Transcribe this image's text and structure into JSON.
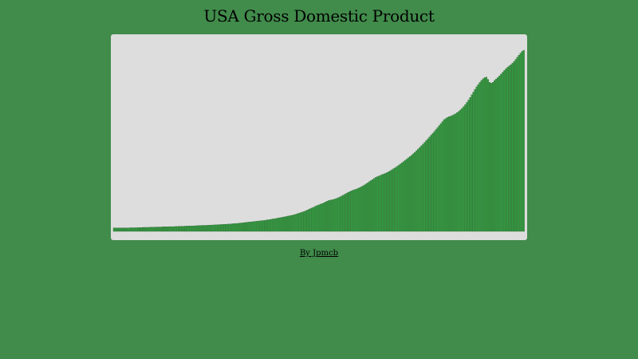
{
  "colors": {
    "page_background": "#418b4b",
    "panel_background": "#dddddd",
    "bar_fill": "#33a03f",
    "bar_stroke": "#1d5e26"
  },
  "chart_data": {
    "type": "bar",
    "title": "USA Gross Domestic Product",
    "xlabel": "",
    "ylabel": "",
    "grid": false,
    "legend": "none",
    "ylim": [
      0,
      100
    ],
    "series": [
      {
        "values": [
          1.9,
          1.9,
          1.9,
          1.9,
          1.9,
          1.9,
          1.9,
          1.9,
          1.9,
          1.9,
          2.0,
          2.0,
          2.0,
          2.0,
          2.0,
          2.1,
          2.1,
          2.1,
          2.2,
          2.2,
          2.2,
          2.2,
          2.3,
          2.3,
          2.3,
          2.3,
          2.4,
          2.4,
          2.4,
          2.4,
          2.5,
          2.5,
          2.5,
          2.5,
          2.6,
          2.6,
          2.6,
          2.6,
          2.7,
          2.7,
          2.8,
          2.8,
          2.8,
          2.8,
          2.9,
          2.9,
          3.0,
          3.0,
          3.0,
          3.0,
          3.1,
          3.1,
          3.2,
          3.2,
          3.3,
          3.3,
          3.3,
          3.3,
          3.4,
          3.4,
          3.5,
          3.5,
          3.6,
          3.6,
          3.7,
          3.7,
          3.8,
          3.8,
          3.9,
          3.9,
          4.0,
          4.0,
          4.1,
          4.2,
          4.3,
          4.3,
          4.4,
          4.5,
          4.6,
          4.7,
          4.8,
          4.9,
          5.0,
          5.1,
          5.2,
          5.3,
          5.4,
          5.5,
          5.6,
          5.7,
          5.8,
          5.9,
          6.0,
          6.1,
          6.3,
          6.4,
          6.5,
          6.7,
          6.9,
          7.0,
          7.2,
          7.4,
          7.5,
          7.7,
          7.9,
          8.0,
          8.2,
          8.4,
          8.6,
          8.8,
          9.0,
          9.2,
          9.5,
          9.8,
          10.1,
          10.4,
          10.7,
          11.0,
          11.4,
          11.8,
          12.2,
          12.6,
          13.0,
          13.4,
          13.9,
          14.3,
          14.6,
          15.0,
          15.3,
          15.7,
          16.2,
          16.6,
          17.0,
          17.2,
          17.4,
          17.6,
          17.9,
          18.2,
          18.6,
          19.0,
          19.5,
          20.0,
          20.5,
          21.0,
          21.5,
          21.9,
          22.3,
          22.7,
          23.0,
          23.3,
          23.7,
          24.1,
          24.6,
          25.1,
          25.6,
          26.2,
          26.8,
          27.4,
          28.0,
          28.6,
          29.2,
          29.8,
          30.2,
          30.6,
          31.0,
          31.4,
          31.7,
          32.1,
          32.5,
          33.0,
          33.5,
          34.0,
          34.6,
          35.2,
          35.8,
          36.4,
          37.1,
          37.8,
          38.5,
          39.2,
          39.9,
          40.6,
          41.3,
          42.0,
          42.8,
          43.6,
          44.5,
          45.4,
          46.3,
          47.2,
          48.1,
          49.1,
          50.1,
          51.1,
          52.1,
          53.1,
          54.1,
          55.1,
          56.2,
          57.3,
          58.4,
          59.5,
          60.6,
          61.7,
          62.3,
          62.9,
          63.3,
          63.6,
          64.0,
          64.4,
          64.9,
          65.5,
          66.2,
          67.0,
          67.9,
          68.9,
          70.0,
          71.2,
          72.5,
          73.9,
          75.4,
          76.9,
          78.4,
          79.8,
          81.1,
          82.3,
          83.4,
          84.3,
          84.9,
          85.2,
          83.9,
          82.3,
          81.8,
          82.3,
          83.3,
          84.1,
          84.9,
          85.8,
          86.8,
          87.8,
          88.8,
          89.8,
          90.6,
          91.3,
          92.0,
          92.8,
          93.8,
          94.9,
          96.1,
          97.3,
          98.4,
          99.4,
          100.0
        ]
      }
    ]
  },
  "footer": {
    "credit": "By Jpmcb"
  }
}
